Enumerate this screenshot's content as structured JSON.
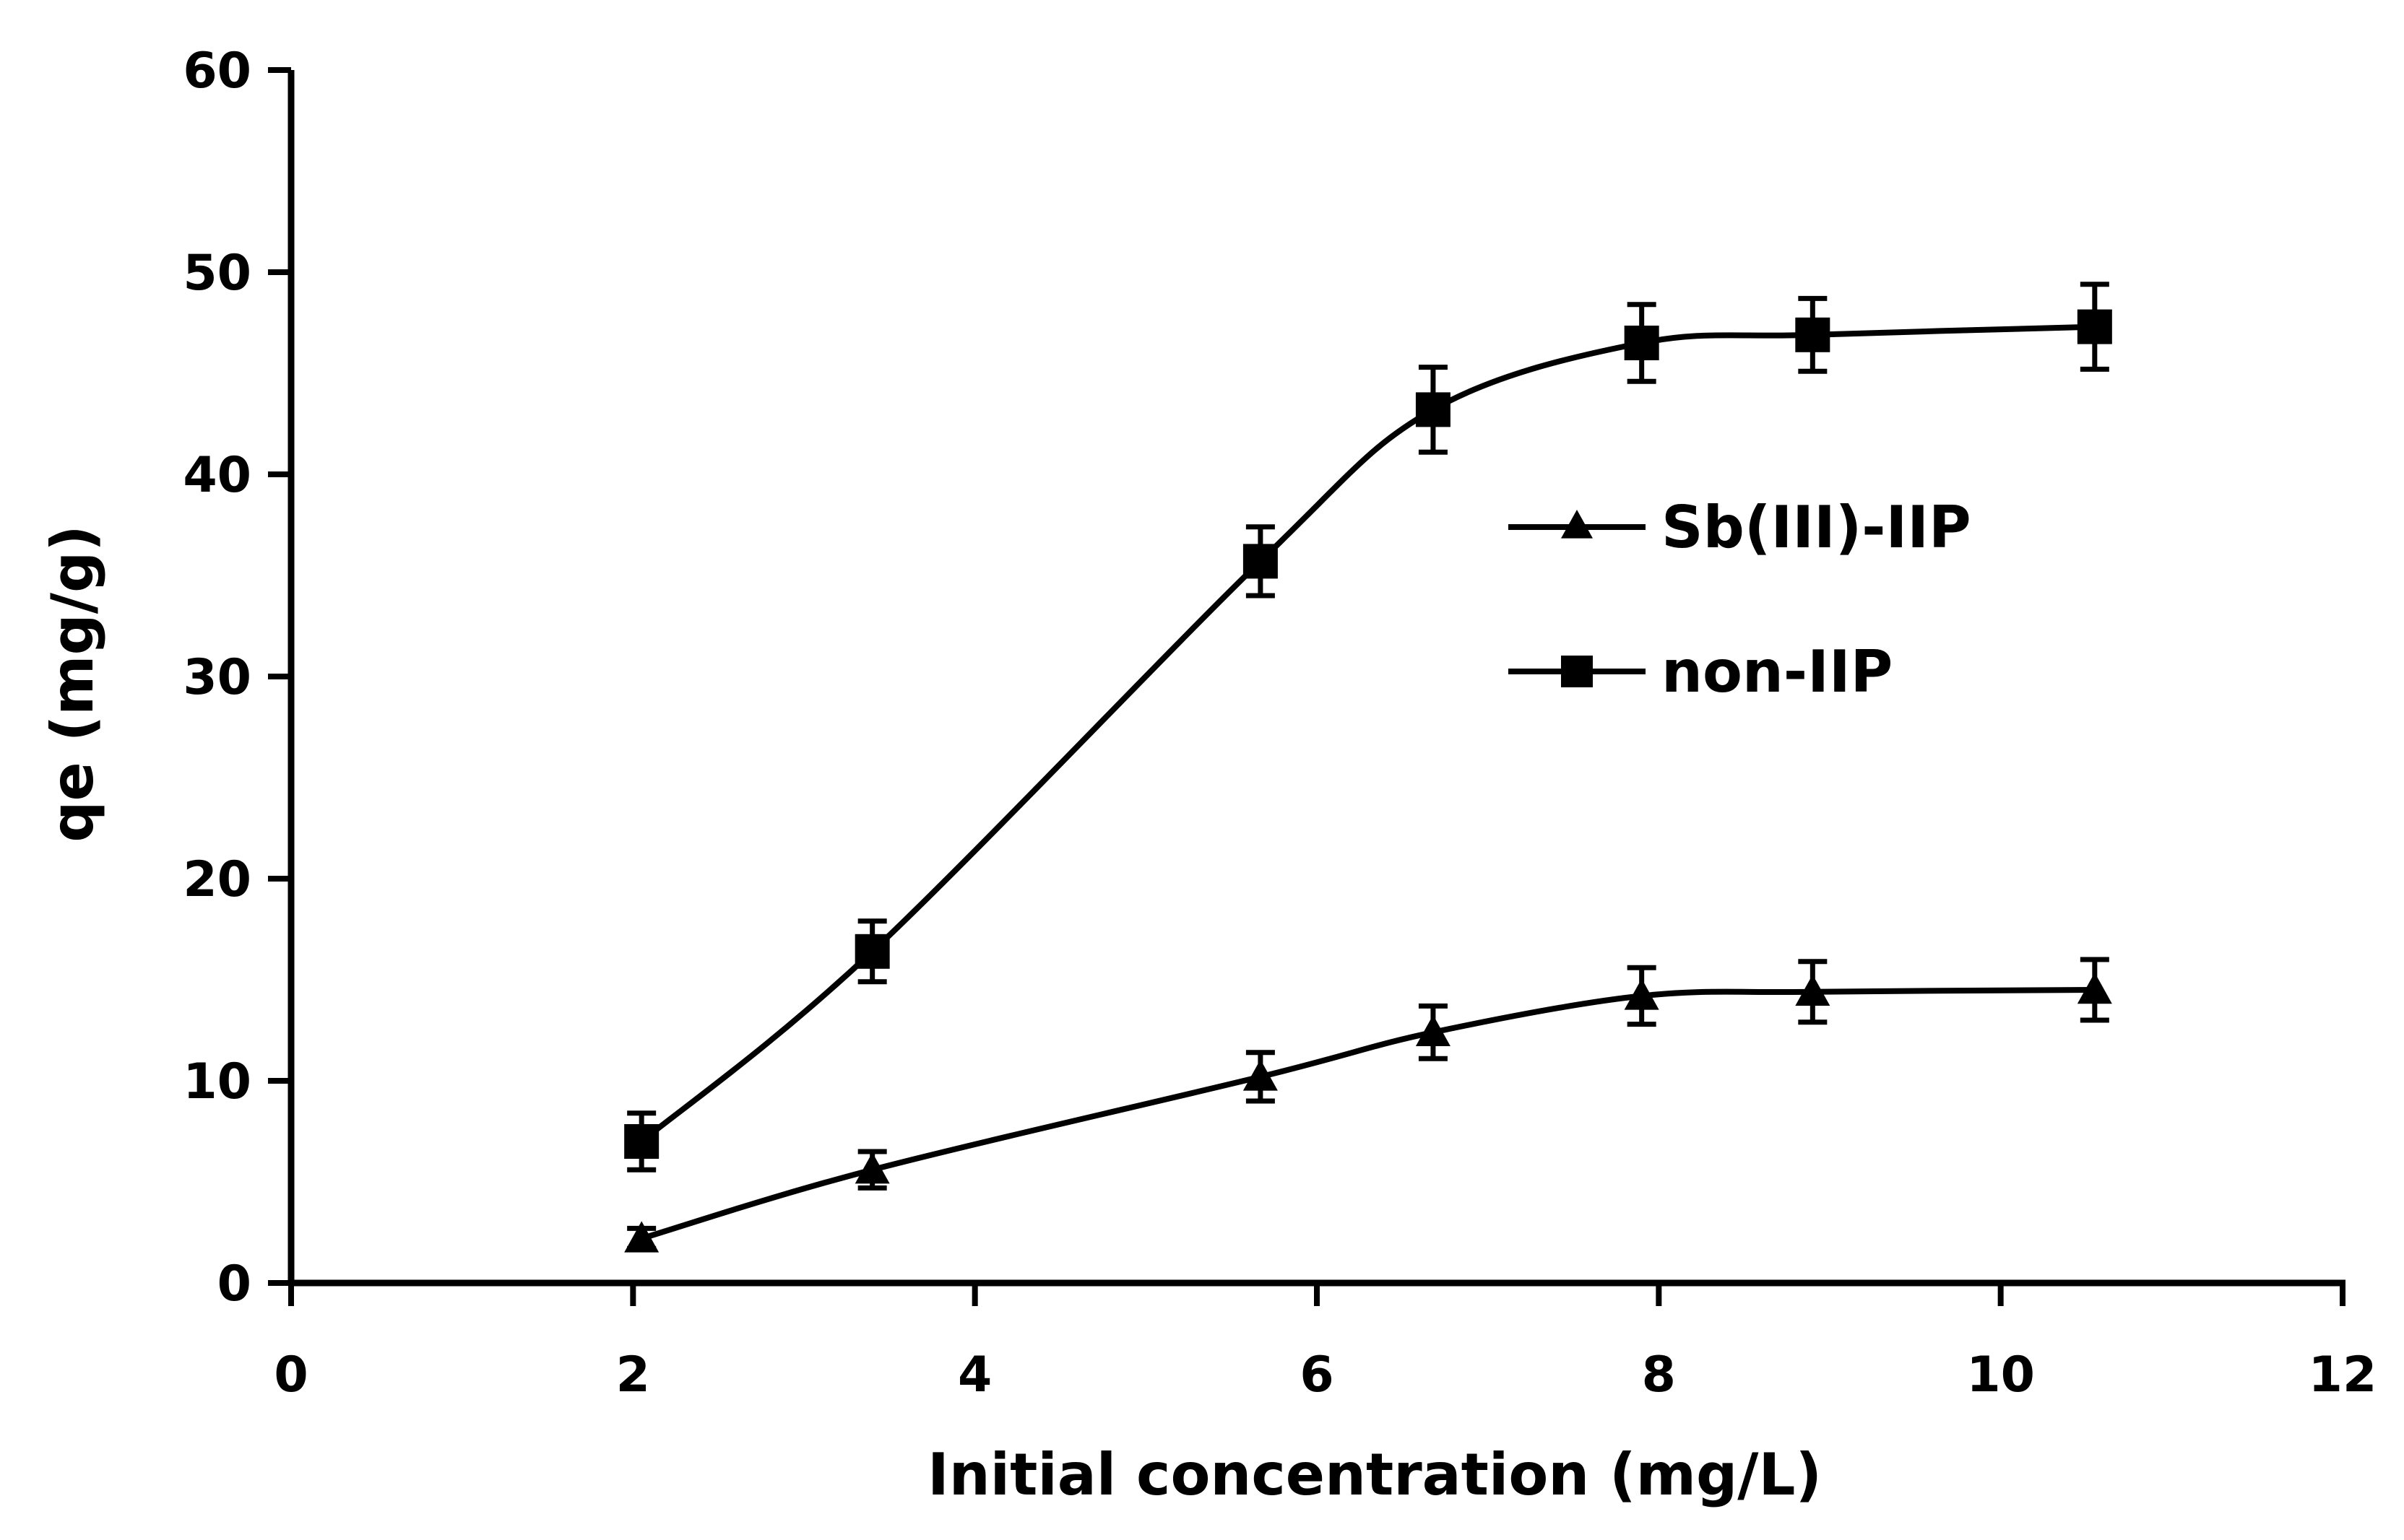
{
  "chart_data": {
    "type": "line",
    "title": "",
    "xlabel": "Initial concentration (mg/L)",
    "ylabel": "qe (mg/g)",
    "xlim": [
      0,
      12
    ],
    "ylim": [
      0,
      60
    ],
    "xticks": [
      0,
      2,
      4,
      6,
      8,
      10,
      12
    ],
    "yticks": [
      0,
      10,
      20,
      30,
      40,
      50,
      60
    ],
    "grid": false,
    "legend_position": "center-right",
    "series": [
      {
        "name": "Sb(III)-IIP",
        "marker": "triangle",
        "x": [
          2.05,
          3.4,
          5.67,
          6.68,
          7.9,
          8.9,
          10.55
        ],
        "y": [
          2.2,
          5.6,
          10.2,
          12.4,
          14.2,
          14.4,
          14.5
        ],
        "err": [
          0.5,
          0.9,
          1.2,
          1.3,
          1.4,
          1.5,
          1.5
        ]
      },
      {
        "name": "non-IIP",
        "marker": "square",
        "x": [
          2.05,
          3.4,
          5.67,
          6.68,
          7.9,
          8.9,
          10.55
        ],
        "y": [
          7.0,
          16.4,
          35.7,
          43.2,
          46.5,
          46.9,
          47.3
        ],
        "err": [
          1.4,
          1.5,
          1.7,
          2.1,
          1.9,
          1.8,
          2.1
        ]
      }
    ]
  },
  "colors": {
    "line": "#000000",
    "axis": "#000000",
    "background": "#ffffff"
  }
}
